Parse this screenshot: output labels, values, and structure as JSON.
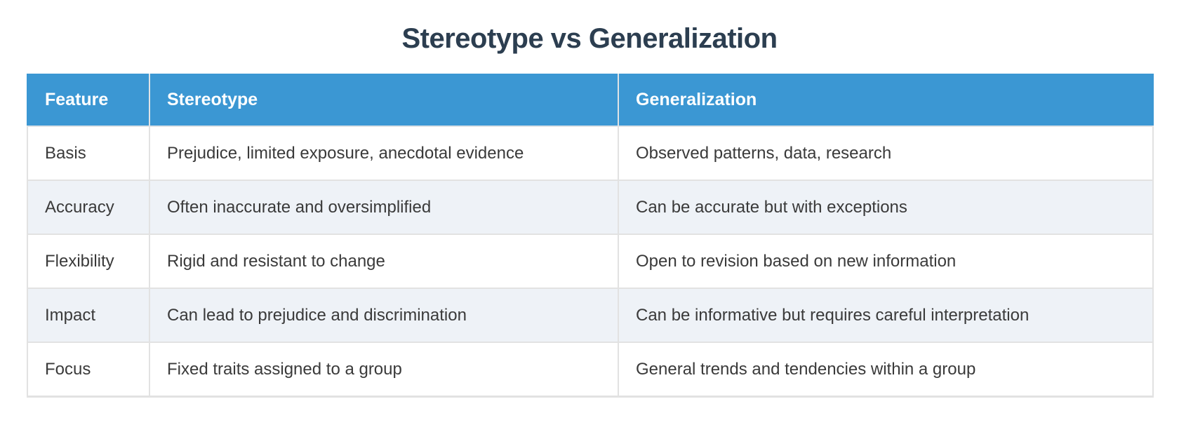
{
  "page": {
    "title": "Stereotype vs Generalization"
  },
  "table": {
    "columns": [
      "Feature",
      "Stereotype",
      "Generalization"
    ],
    "rows": [
      {
        "feature": "Basis",
        "stereotype": "Prejudice, limited exposure, anecdotal evidence",
        "generalization": "Observed patterns, data, research"
      },
      {
        "feature": "Accuracy",
        "stereotype": "Often inaccurate and oversimplified",
        "generalization": "Can be accurate but with exceptions"
      },
      {
        "feature": "Flexibility",
        "stereotype": "Rigid and resistant to change",
        "generalization": "Open to revision based on new information"
      },
      {
        "feature": "Impact",
        "stereotype": "Can lead to prejudice and discrimination",
        "generalization": "Can be informative but requires careful interpretation"
      },
      {
        "feature": "Focus",
        "stereotype": "Fixed traits assigned to a group",
        "generalization": "General trends and tendencies within a group"
      }
    ]
  },
  "colors": {
    "header_bg": "#3b97d3",
    "header_text": "#ffffff",
    "title_text": "#2c3e50",
    "cell_text": "#3a3a3a",
    "row_alt_bg": "#eef2f7",
    "border": "#e2e2e2"
  }
}
